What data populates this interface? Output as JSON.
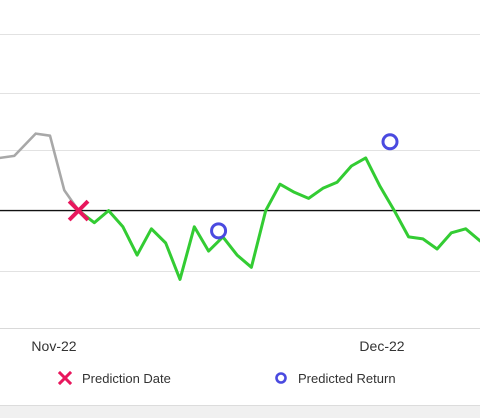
{
  "chart_data": {
    "type": "line",
    "title": "",
    "xlabel": "",
    "ylabel": "",
    "x_tick_labels": [
      "Nov-22",
      "Dec-22"
    ],
    "grid": "horizontal",
    "legend_position": "bottom",
    "series": [
      {
        "name": "",
        "color": "#a8a8a8",
        "points": [
          [
            0.0,
            2.6
          ],
          [
            1.0,
            2.7
          ],
          [
            2.5,
            3.8
          ],
          [
            3.5,
            3.7
          ],
          [
            4.5,
            1.0
          ],
          [
            5.5,
            0.0
          ]
        ]
      },
      {
        "name": "",
        "color": "#33cc33",
        "points": [
          [
            5.5,
            0.0
          ],
          [
            6.6,
            -0.6
          ],
          [
            7.6,
            0.0
          ],
          [
            8.6,
            -0.8
          ],
          [
            9.6,
            -2.2
          ],
          [
            10.6,
            -0.9
          ],
          [
            11.6,
            -1.6
          ],
          [
            12.6,
            -3.4
          ],
          [
            13.6,
            -0.8
          ],
          [
            14.6,
            -2.0
          ],
          [
            15.6,
            -1.3
          ],
          [
            16.6,
            -2.2
          ],
          [
            17.6,
            -2.8
          ],
          [
            18.6,
            0.0
          ],
          [
            19.6,
            1.3
          ],
          [
            20.6,
            0.9
          ],
          [
            21.6,
            0.6
          ],
          [
            22.6,
            1.1
          ],
          [
            23.6,
            1.4
          ],
          [
            24.6,
            2.2
          ],
          [
            25.6,
            2.6
          ],
          [
            26.6,
            1.2
          ],
          [
            27.6,
            0.0
          ],
          [
            28.6,
            -1.3
          ],
          [
            29.6,
            -1.4
          ],
          [
            30.6,
            -1.9
          ],
          [
            31.6,
            -1.1
          ],
          [
            32.6,
            -0.9
          ],
          [
            33.6,
            -1.5
          ]
        ]
      }
    ],
    "baseline": 0,
    "prediction_date": {
      "x": 5.5,
      "y": 0.0,
      "color": "#e8175d"
    },
    "predicted_returns": [
      {
        "x": 15.3,
        "y": -1.0,
        "color": "#4a4ae0"
      },
      {
        "x": 27.3,
        "y": 3.4,
        "color": "#4a4ae0"
      }
    ],
    "grid_values": [
      -5.8,
      -3.0,
      0.0,
      3.0,
      5.8,
      8.7
    ],
    "xlim": [
      0,
      33.6
    ],
    "ylim": [
      -5.8,
      10.4
    ]
  },
  "legend": {
    "prediction_label": "Prediction Date",
    "predicted_return_label": "Predicted Return",
    "prediction_color": "#e8175d",
    "predicted_return_color": "#4a4ae0"
  }
}
